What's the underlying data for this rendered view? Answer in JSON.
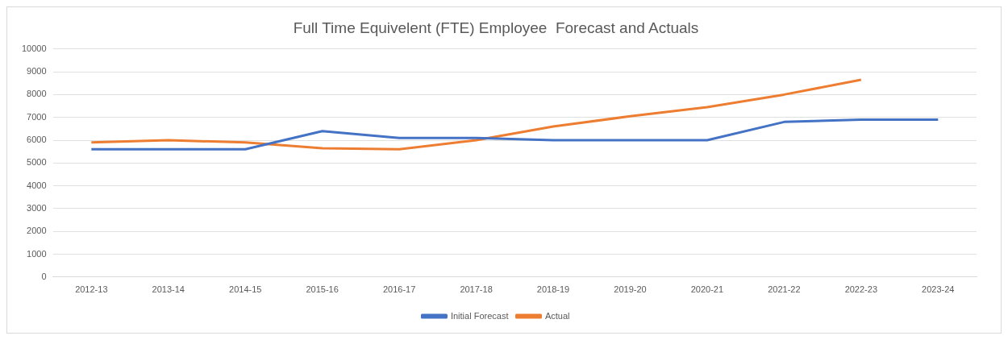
{
  "chart_data": {
    "type": "line",
    "title": "Full Time Equivelent (FTE) Employee  Forecast and Actuals",
    "categories": [
      "2012-13",
      "2013-14",
      "2014-15",
      "2015-16",
      "2016-17",
      "2017-18",
      "2018-19",
      "2019-20",
      "2020-21",
      "2021-22",
      "2022-23",
      "2023-24"
    ],
    "series": [
      {
        "name": "Initial Forecast",
        "color": "#4472c4",
        "values": [
          5600,
          5600,
          5600,
          6400,
          6100,
          6100,
          6000,
          6000,
          6000,
          6800,
          6900,
          6900
        ]
      },
      {
        "name": "Actual",
        "color": "#ed7d31",
        "values": [
          5900,
          6000,
          5900,
          5650,
          5600,
          6000,
          6600,
          7050,
          7450,
          8000,
          8650,
          null
        ]
      }
    ],
    "ylim": [
      0,
      10000
    ],
    "yticks": [
      0,
      1000,
      2000,
      3000,
      4000,
      5000,
      6000,
      7000,
      8000,
      9000,
      10000
    ],
    "grid": "y",
    "legend": "bottom",
    "marker": "none",
    "line_style": "solid"
  }
}
